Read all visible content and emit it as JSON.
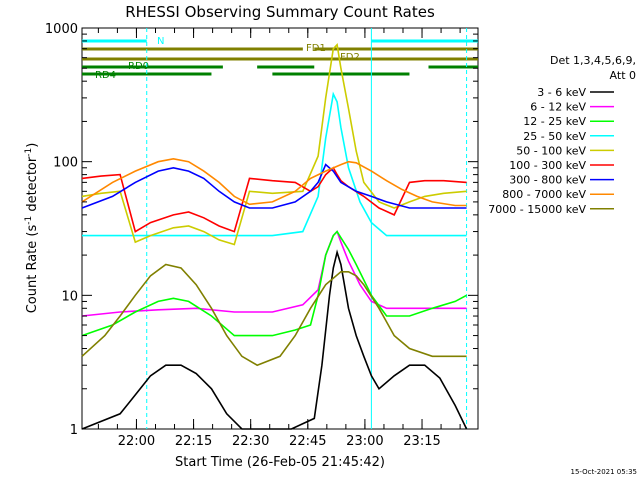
{
  "chart_data": {
    "type": "line",
    "title": "RHESSI Observing Summary Count Rates",
    "xlabel": "Start Time (26-Feb-05 21:45:42)",
    "ylabel": "Count Rate (s⁻¹ detector⁻¹)",
    "ylabel_parts": [
      "Count Rate (s",
      "-1",
      " detector",
      "-1",
      ")"
    ],
    "x_start": "21:45:42",
    "xlim_minutes": [
      0,
      104
    ],
    "x_ticks": [
      {
        "label": "22:00",
        "minutes": 14.3
      },
      {
        "label": "22:15",
        "minutes": 29.3
      },
      {
        "label": "22:30",
        "minutes": 44.3
      },
      {
        "label": "22:45",
        "minutes": 59.3
      },
      {
        "label": "23:00",
        "minutes": 74.3
      },
      {
        "label": "23:15",
        "minutes": 89.3
      }
    ],
    "y_scale": "log",
    "ylim": [
      1,
      1000
    ],
    "y_ticks": [
      {
        "label": "1",
        "value": 1
      },
      {
        "label": "10",
        "value": 10
      },
      {
        "label": "100",
        "value": 100
      },
      {
        "label": "1000",
        "value": 1000
      }
    ],
    "legend_header": [
      "Det 1,3,4,5,6,9,",
      "Att 0"
    ],
    "legend_placement": "right",
    "footer_timestamp": "15-Oct-2021 05:35",
    "series": [
      {
        "name": "3 - 6 keV",
        "color": "#000000",
        "points": [
          [
            0,
            1
          ],
          [
            10,
            1.3
          ],
          [
            14,
            1.8
          ],
          [
            18,
            2.5
          ],
          [
            22,
            3
          ],
          [
            26,
            3
          ],
          [
            30,
            2.6
          ],
          [
            34,
            2
          ],
          [
            38,
            1.3
          ],
          [
            42,
            1
          ],
          [
            55,
            1
          ],
          [
            61,
            1.2
          ],
          [
            63,
            3
          ],
          [
            65,
            10
          ],
          [
            66,
            16
          ],
          [
            67,
            21
          ],
          [
            68,
            17
          ],
          [
            70,
            8
          ],
          [
            72,
            5
          ],
          [
            74,
            3.5
          ],
          [
            76,
            2.5
          ],
          [
            78,
            2
          ],
          [
            82,
            2.5
          ],
          [
            86,
            3
          ],
          [
            90,
            3
          ],
          [
            94,
            2.4
          ],
          [
            98,
            1.5
          ],
          [
            101,
            1
          ]
        ]
      },
      {
        "name": "6 - 12 keV",
        "color": "#ff00ff",
        "points": [
          [
            0,
            7
          ],
          [
            10,
            7.5
          ],
          [
            20,
            7.8
          ],
          [
            30,
            8
          ],
          [
            40,
            7.5
          ],
          [
            50,
            7.5
          ],
          [
            58,
            8.5
          ],
          [
            62,
            11
          ],
          [
            64,
            20
          ],
          [
            66,
            28
          ],
          [
            67,
            30
          ],
          [
            68,
            25
          ],
          [
            70,
            18
          ],
          [
            73,
            12
          ],
          [
            76,
            9
          ],
          [
            80,
            8
          ],
          [
            86,
            8
          ],
          [
            92,
            8
          ],
          [
            98,
            8
          ],
          [
            101,
            8
          ]
        ]
      },
      {
        "name": "12 - 25 keV",
        "color": "#00ff00",
        "points": [
          [
            0,
            5
          ],
          [
            8,
            6
          ],
          [
            14,
            7.5
          ],
          [
            20,
            9
          ],
          [
            24,
            9.5
          ],
          [
            28,
            9
          ],
          [
            34,
            7
          ],
          [
            40,
            5
          ],
          [
            44,
            5
          ],
          [
            50,
            5
          ],
          [
            56,
            5.5
          ],
          [
            60,
            6
          ],
          [
            62,
            10
          ],
          [
            64,
            20
          ],
          [
            66,
            28
          ],
          [
            67,
            30
          ],
          [
            68,
            27
          ],
          [
            70,
            22
          ],
          [
            72,
            17
          ],
          [
            76,
            10
          ],
          [
            80,
            7
          ],
          [
            86,
            7
          ],
          [
            92,
            8
          ],
          [
            98,
            9
          ],
          [
            101,
            10
          ]
        ]
      },
      {
        "name": "25 - 50 keV",
        "color": "#00ffff",
        "points": [
          [
            0,
            28
          ],
          [
            10,
            28
          ],
          [
            20,
            28
          ],
          [
            30,
            28
          ],
          [
            40,
            28
          ],
          [
            50,
            28
          ],
          [
            58,
            30
          ],
          [
            62,
            55
          ],
          [
            64,
            150
          ],
          [
            66,
            320
          ],
          [
            67,
            280
          ],
          [
            68,
            180
          ],
          [
            70,
            90
          ],
          [
            73,
            50
          ],
          [
            76,
            35
          ],
          [
            80,
            28
          ],
          [
            86,
            28
          ],
          [
            92,
            28
          ],
          [
            98,
            28
          ],
          [
            101,
            28
          ]
        ]
      },
      {
        "name": "50 - 100 keV",
        "color": "#cccc00",
        "points": [
          [
            0,
            55
          ],
          [
            5,
            58
          ],
          [
            10,
            60
          ],
          [
            14,
            25
          ],
          [
            18,
            28
          ],
          [
            24,
            32
          ],
          [
            28,
            33
          ],
          [
            32,
            30
          ],
          [
            36,
            26
          ],
          [
            40,
            24
          ],
          [
            44,
            60
          ],
          [
            50,
            58
          ],
          [
            58,
            60
          ],
          [
            62,
            110
          ],
          [
            64,
            300
          ],
          [
            66,
            700
          ],
          [
            67,
            750
          ],
          [
            68,
            500
          ],
          [
            70,
            250
          ],
          [
            72,
            120
          ],
          [
            74,
            70
          ],
          [
            78,
            50
          ],
          [
            82,
            45
          ],
          [
            86,
            50
          ],
          [
            90,
            55
          ],
          [
            95,
            58
          ],
          [
            101,
            60
          ]
        ]
      },
      {
        "name": "100 - 300 keV",
        "color": "#ff0000",
        "points": [
          [
            0,
            75
          ],
          [
            5,
            78
          ],
          [
            10,
            80
          ],
          [
            14,
            30
          ],
          [
            18,
            35
          ],
          [
            24,
            40
          ],
          [
            28,
            42
          ],
          [
            32,
            38
          ],
          [
            36,
            33
          ],
          [
            40,
            30
          ],
          [
            44,
            75
          ],
          [
            50,
            72
          ],
          [
            56,
            70
          ],
          [
            60,
            60
          ],
          [
            62,
            65
          ],
          [
            64,
            80
          ],
          [
            66,
            90
          ],
          [
            67,
            80
          ],
          [
            68,
            72
          ],
          [
            70,
            65
          ],
          [
            74,
            55
          ],
          [
            78,
            45
          ],
          [
            82,
            40
          ],
          [
            86,
            70
          ],
          [
            90,
            72
          ],
          [
            95,
            72
          ],
          [
            101,
            70
          ]
        ]
      },
      {
        "name": "300 - 800 keV",
        "color": "#0000ff",
        "points": [
          [
            0,
            45
          ],
          [
            8,
            55
          ],
          [
            14,
            70
          ],
          [
            20,
            85
          ],
          [
            24,
            90
          ],
          [
            28,
            85
          ],
          [
            32,
            75
          ],
          [
            36,
            60
          ],
          [
            40,
            50
          ],
          [
            44,
            45
          ],
          [
            50,
            45
          ],
          [
            56,
            50
          ],
          [
            60,
            60
          ],
          [
            62,
            70
          ],
          [
            64,
            95
          ],
          [
            66,
            85
          ],
          [
            68,
            70
          ],
          [
            72,
            60
          ],
          [
            76,
            55
          ],
          [
            80,
            50
          ],
          [
            86,
            45
          ],
          [
            92,
            45
          ],
          [
            98,
            45
          ],
          [
            101,
            45
          ]
        ]
      },
      {
        "name": "800 - 7000 keV",
        "color": "#ff8800",
        "points": [
          [
            0,
            50
          ],
          [
            8,
            70
          ],
          [
            14,
            85
          ],
          [
            20,
            100
          ],
          [
            24,
            105
          ],
          [
            28,
            100
          ],
          [
            32,
            85
          ],
          [
            36,
            70
          ],
          [
            40,
            55
          ],
          [
            44,
            48
          ],
          [
            50,
            50
          ],
          [
            56,
            60
          ],
          [
            60,
            75
          ],
          [
            64,
            85
          ],
          [
            68,
            95
          ],
          [
            70,
            100
          ],
          [
            72,
            98
          ],
          [
            76,
            85
          ],
          [
            80,
            72
          ],
          [
            84,
            62
          ],
          [
            88,
            55
          ],
          [
            92,
            50
          ],
          [
            98,
            47
          ],
          [
            101,
            47
          ]
        ]
      },
      {
        "name": "7000 - 15000 keV",
        "color": "#808000",
        "points": [
          [
            0,
            3.5
          ],
          [
            6,
            5
          ],
          [
            10,
            7
          ],
          [
            14,
            10
          ],
          [
            18,
            14
          ],
          [
            22,
            17
          ],
          [
            26,
            16
          ],
          [
            30,
            12
          ],
          [
            34,
            8
          ],
          [
            38,
            5
          ],
          [
            42,
            3.5
          ],
          [
            46,
            3
          ],
          [
            52,
            3.5
          ],
          [
            56,
            5
          ],
          [
            60,
            8
          ],
          [
            64,
            12
          ],
          [
            68,
            15
          ],
          [
            70,
            15
          ],
          [
            72,
            14
          ],
          [
            74,
            12
          ],
          [
            78,
            8
          ],
          [
            82,
            5
          ],
          [
            86,
            4
          ],
          [
            92,
            3.5
          ],
          [
            98,
            3.5
          ],
          [
            101,
            3.5
          ]
        ]
      }
    ],
    "state_bars": [
      {
        "label": "N",
        "color": "#00ffff",
        "segments": [
          [
            0,
            17
          ],
          [
            76,
            104
          ]
        ]
      },
      {
        "label": "FD1",
        "color": "#808000",
        "segments": [
          [
            0,
            58
          ],
          [
            61,
            104
          ]
        ]
      },
      {
        "label": "FD2",
        "color": "#808000",
        "segments": [
          [
            0,
            104
          ]
        ]
      },
      {
        "label": "RD0",
        "color": "#008000",
        "segments": [
          [
            0,
            37
          ],
          [
            46,
            61
          ],
          [
            91,
            104
          ]
        ]
      },
      {
        "label": "RD4",
        "color": "#008000",
        "segments": [
          [
            0,
            34
          ],
          [
            50,
            86
          ]
        ]
      }
    ],
    "vertical_markers": [
      {
        "minutes": 17,
        "style": "dashed"
      },
      {
        "minutes": 76,
        "style": "solid"
      },
      {
        "minutes": 101,
        "style": "dashed"
      }
    ]
  }
}
